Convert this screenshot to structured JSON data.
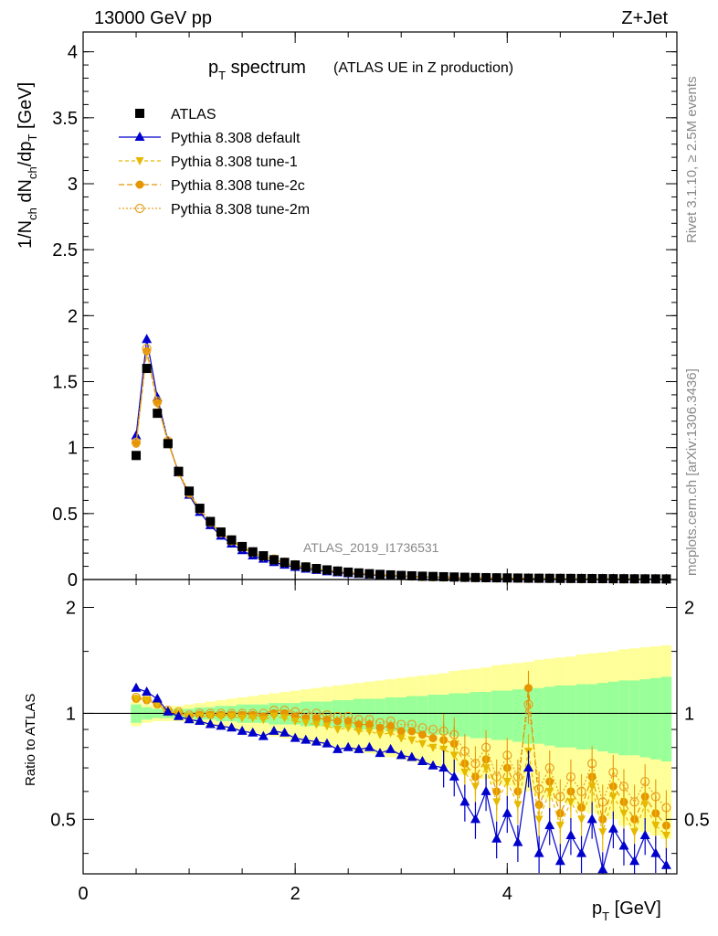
{
  "header": {
    "left": "13000 GeV pp",
    "right": "Z+Jet"
  },
  "title": {
    "main": "p",
    "main_sub": "T",
    "main_rest": " spectrum",
    "sub": "(ATLAS UE in Z production)"
  },
  "side_text": {
    "top": "Rivet 3.1.10, ≥ 2.5M events",
    "bottom": "mcplots.cern.ch [arXiv:1306.3436]"
  },
  "watermark": "ATLAS_2019_I1736531",
  "legend": [
    "ATLAS",
    "Pythia 8.308 default",
    "Pythia 8.308 tune-1",
    "Pythia 8.308 tune-2c",
    "Pythia 8.308 tune-2m"
  ],
  "colors": {
    "atlas": "#000000",
    "default": "#0000cc",
    "tune1": "#e6b800",
    "tune2c": "#e69500",
    "tune2m": "#e6a020",
    "band_inner": "#99ff99",
    "band_outer": "#ffff99"
  },
  "main_axis": {
    "ylabel": "1/N_ch dN_ch/dp_T [GeV]",
    "yticks": [
      "0",
      "0.5",
      "1",
      "1.5",
      "2",
      "2.5",
      "3",
      "3.5",
      "4"
    ]
  },
  "ratio_axis": {
    "ylabel": "Ratio to ATLAS",
    "yticks": [
      "0.5",
      "1",
      "2"
    ],
    "yticks_right": [
      "0.5",
      "1",
      "2"
    ]
  },
  "x_axis": {
    "label": "p_T [GeV]",
    "ticks": [
      "0",
      "2",
      "4"
    ]
  },
  "chart_data": [
    {
      "type": "scatter",
      "title": "p_T spectrum (ATLAS UE in Z production)",
      "xlabel": "p_T [GeV]",
      "ylabel": "1/N_ch dN_ch/dp_T [GeV]",
      "xlim": [
        0,
        5.6
      ],
      "ylim": [
        0,
        4.15
      ],
      "x": [
        0.5,
        0.6,
        0.7,
        0.8,
        0.9,
        1.0,
        1.1,
        1.2,
        1.3,
        1.4,
        1.5,
        1.6,
        1.7,
        1.8,
        1.9,
        2.0,
        2.1,
        2.2,
        2.3,
        2.4,
        2.5,
        2.6,
        2.7,
        2.8,
        2.9,
        3.0,
        3.1,
        3.2,
        3.3,
        3.4,
        3.5,
        3.6,
        3.7,
        3.8,
        3.9,
        4.0,
        4.1,
        4.2,
        4.3,
        4.4,
        4.5,
        4.6,
        4.7,
        4.8,
        4.9,
        5.0,
        5.1,
        5.2,
        5.3,
        5.4,
        5.5
      ],
      "series": [
        {
          "name": "ATLAS",
          "values": [
            0.94,
            1.6,
            1.26,
            1.03,
            0.82,
            0.67,
            0.54,
            0.44,
            0.36,
            0.3,
            0.25,
            0.21,
            0.18,
            0.15,
            0.13,
            0.11,
            0.095,
            0.083,
            0.073,
            0.064,
            0.056,
            0.05,
            0.044,
            0.039,
            0.035,
            0.031,
            0.028,
            0.025,
            0.023,
            0.021,
            0.019,
            0.017,
            0.015,
            0.014,
            0.013,
            0.012,
            0.011,
            0.01,
            0.0095,
            0.009,
            0.0085,
            0.008,
            0.0075,
            0.007,
            0.0065,
            0.006,
            0.0056,
            0.0052,
            0.0048,
            0.0045,
            0.0042
          ]
        },
        {
          "name": "Pythia 8.308 default",
          "values": [
            1.09,
            1.82,
            1.38,
            1.05,
            0.81,
            0.64,
            0.51,
            0.41,
            0.33,
            0.27,
            0.22,
            0.18,
            0.155,
            0.13,
            0.11,
            0.093,
            0.08,
            0.07,
            0.06,
            0.052,
            0.045,
            0.04,
            0.035,
            0.031,
            0.028,
            0.025,
            0.022,
            0.02,
            0.018,
            0.016,
            0.014,
            0.012,
            0.011,
            0.01,
            0.009,
            0.008,
            0.007,
            0.007,
            0.006,
            0.006,
            0.005,
            0.005,
            0.005,
            0.004,
            0.004,
            0.004,
            0.004,
            0.003,
            0.003,
            0.003,
            0.003
          ]
        },
        {
          "name": "Pythia 8.308 tune-1",
          "values": [
            1.03,
            1.72,
            1.33,
            1.04,
            0.81,
            0.65,
            0.53,
            0.43,
            0.35,
            0.29,
            0.24,
            0.2,
            0.17,
            0.145,
            0.125,
            0.105,
            0.09,
            0.078,
            0.068,
            0.059,
            0.051,
            0.045,
            0.039,
            0.034,
            0.031,
            0.027,
            0.024,
            0.021,
            0.019,
            0.017,
            0.015,
            0.013,
            0.012,
            0.011,
            0.01,
            0.009,
            0.008,
            0.008,
            0.007,
            0.007,
            0.006,
            0.006,
            0.005,
            0.005,
            0.005,
            0.004,
            0.004,
            0.004,
            0.004,
            0.003,
            0.003
          ]
        },
        {
          "name": "Pythia 8.308 tune-2c",
          "values": [
            1.03,
            1.73,
            1.34,
            1.04,
            0.81,
            0.65,
            0.53,
            0.43,
            0.35,
            0.29,
            0.245,
            0.205,
            0.175,
            0.15,
            0.128,
            0.108,
            0.093,
            0.08,
            0.07,
            0.061,
            0.053,
            0.046,
            0.04,
            0.035,
            0.031,
            0.027,
            0.024,
            0.022,
            0.02,
            0.018,
            0.016,
            0.014,
            0.013,
            0.012,
            0.011,
            0.01,
            0.009,
            0.008,
            0.008,
            0.007,
            0.007,
            0.006,
            0.006,
            0.005,
            0.005,
            0.005,
            0.004,
            0.004,
            0.004,
            0.004,
            0.003
          ]
        },
        {
          "name": "Pythia 8.308 tune-2m",
          "values": [
            1.04,
            1.75,
            1.35,
            1.05,
            0.82,
            0.66,
            0.54,
            0.44,
            0.36,
            0.3,
            0.25,
            0.21,
            0.18,
            0.155,
            0.132,
            0.112,
            0.097,
            0.084,
            0.073,
            0.064,
            0.055,
            0.048,
            0.042,
            0.037,
            0.033,
            0.029,
            0.026,
            0.023,
            0.021,
            0.019,
            0.017,
            0.015,
            0.014,
            0.013,
            0.012,
            0.011,
            0.01,
            0.009,
            0.009,
            0.008,
            0.007,
            0.007,
            0.006,
            0.006,
            0.006,
            0.005,
            0.005,
            0.005,
            0.004,
            0.004,
            0.004
          ]
        }
      ]
    },
    {
      "type": "line",
      "title": "",
      "xlabel": "p_T [GeV]",
      "ylabel": "Ratio to ATLAS",
      "xlim": [
        0,
        5.6
      ],
      "ylim": [
        0.35,
        2.4
      ],
      "log_y": true,
      "x": [
        0.5,
        0.6,
        0.7,
        0.8,
        0.9,
        1.0,
        1.1,
        1.2,
        1.3,
        1.4,
        1.5,
        1.6,
        1.7,
        1.8,
        1.9,
        2.0,
        2.1,
        2.2,
        2.3,
        2.4,
        2.5,
        2.6,
        2.7,
        2.8,
        2.9,
        3.0,
        3.1,
        3.2,
        3.3,
        3.4,
        3.5,
        3.6,
        3.7,
        3.8,
        3.9,
        4.0,
        4.1,
        4.2,
        4.3,
        4.4,
        4.5,
        4.6,
        4.7,
        4.8,
        4.9,
        5.0,
        5.1,
        5.2,
        5.3,
        5.4,
        5.5
      ],
      "band_inner": {
        "lo": [
          0.94,
          0.96,
          0.97,
          0.97,
          0.97,
          0.97,
          0.96,
          0.96,
          0.95,
          0.95,
          0.94,
          0.94,
          0.94,
          0.93,
          0.93,
          0.93,
          0.92,
          0.92,
          0.92,
          0.91,
          0.91,
          0.9,
          0.9,
          0.9,
          0.89,
          0.89,
          0.88,
          0.88,
          0.87,
          0.87,
          0.86,
          0.86,
          0.85,
          0.85,
          0.84,
          0.84,
          0.83,
          0.82,
          0.82,
          0.81,
          0.8,
          0.8,
          0.79,
          0.79,
          0.78,
          0.77,
          0.76,
          0.76,
          0.75,
          0.74,
          0.73
        ],
        "hi": [
          1.06,
          1.04,
          1.03,
          1.03,
          1.03,
          1.03,
          1.04,
          1.04,
          1.05,
          1.05,
          1.06,
          1.06,
          1.06,
          1.07,
          1.07,
          1.07,
          1.08,
          1.08,
          1.08,
          1.09,
          1.09,
          1.1,
          1.1,
          1.1,
          1.11,
          1.11,
          1.12,
          1.12,
          1.13,
          1.13,
          1.14,
          1.14,
          1.15,
          1.15,
          1.16,
          1.16,
          1.17,
          1.18,
          1.18,
          1.19,
          1.2,
          1.2,
          1.21,
          1.21,
          1.22,
          1.23,
          1.24,
          1.24,
          1.25,
          1.26,
          1.27
        ]
      },
      "band_outer": {
        "lo": [
          0.92,
          0.94,
          0.95,
          0.95,
          0.95,
          0.94,
          0.93,
          0.92,
          0.91,
          0.9,
          0.89,
          0.88,
          0.87,
          0.86,
          0.85,
          0.84,
          0.83,
          0.82,
          0.81,
          0.8,
          0.79,
          0.78,
          0.77,
          0.76,
          0.75,
          0.74,
          0.73,
          0.72,
          0.71,
          0.7,
          0.68,
          0.67,
          0.66,
          0.65,
          0.63,
          0.62,
          0.61,
          0.6,
          0.58,
          0.57,
          0.56,
          0.55,
          0.53,
          0.52,
          0.51,
          0.5,
          0.48,
          0.47,
          0.46,
          0.45,
          0.44
        ],
        "hi": [
          1.08,
          1.06,
          1.05,
          1.05,
          1.05,
          1.06,
          1.07,
          1.08,
          1.09,
          1.1,
          1.11,
          1.12,
          1.13,
          1.14,
          1.15,
          1.16,
          1.17,
          1.18,
          1.19,
          1.2,
          1.21,
          1.22,
          1.23,
          1.24,
          1.25,
          1.26,
          1.27,
          1.28,
          1.29,
          1.3,
          1.32,
          1.33,
          1.34,
          1.35,
          1.37,
          1.38,
          1.39,
          1.4,
          1.42,
          1.43,
          1.44,
          1.45,
          1.47,
          1.48,
          1.49,
          1.5,
          1.52,
          1.53,
          1.54,
          1.55,
          1.56
        ]
      },
      "series": [
        {
          "name": "Pythia 8.308 default",
          "values": [
            1.18,
            1.15,
            1.1,
            1.01,
            0.98,
            0.96,
            0.95,
            0.93,
            0.92,
            0.91,
            0.89,
            0.88,
            0.86,
            0.89,
            0.88,
            0.85,
            0.84,
            0.83,
            0.82,
            0.79,
            0.8,
            0.79,
            0.8,
            0.77,
            0.79,
            0.76,
            0.75,
            0.73,
            0.71,
            0.7,
            0.66,
            0.56,
            0.5,
            0.6,
            0.44,
            0.52,
            0.43,
            0.7,
            0.4,
            0.48,
            0.38,
            0.45,
            0.4,
            0.5,
            0.36,
            0.47,
            0.42,
            0.38,
            0.45,
            0.4,
            0.37
          ]
        },
        {
          "name": "Pythia 8.308 tune-1",
          "values": [
            1.1,
            1.09,
            1.06,
            1.01,
            1.0,
            0.98,
            0.98,
            0.98,
            0.98,
            0.98,
            0.97,
            0.97,
            0.96,
            0.98,
            0.97,
            0.95,
            0.94,
            0.93,
            0.92,
            0.9,
            0.91,
            0.89,
            0.89,
            0.87,
            0.88,
            0.85,
            0.84,
            0.82,
            0.8,
            0.79,
            0.76,
            0.68,
            0.62,
            0.7,
            0.56,
            0.64,
            0.55,
            0.78,
            0.5,
            0.6,
            0.48,
            0.56,
            0.5,
            0.62,
            0.46,
            0.58,
            0.52,
            0.46,
            0.55,
            0.48,
            0.45
          ]
        },
        {
          "name": "Pythia 8.308 tune-2c",
          "values": [
            1.1,
            1.09,
            1.06,
            1.01,
            1.0,
            0.98,
            0.99,
            0.99,
            0.99,
            0.99,
            0.99,
            0.99,
            0.98,
            1.0,
            1.0,
            0.98,
            0.97,
            0.97,
            0.96,
            0.95,
            0.95,
            0.93,
            0.93,
            0.91,
            0.92,
            0.89,
            0.89,
            0.87,
            0.85,
            0.84,
            0.82,
            0.72,
            0.66,
            0.74,
            0.6,
            0.7,
            0.6,
            1.18,
            0.55,
            0.64,
            0.52,
            0.6,
            0.54,
            0.66,
            0.5,
            0.62,
            0.56,
            0.5,
            0.58,
            0.52,
            0.48
          ]
        },
        {
          "name": "Pythia 8.308 tune-2m",
          "values": [
            1.11,
            1.1,
            1.07,
            1.02,
            1.01,
            0.99,
            1.0,
            1.0,
            1.0,
            1.0,
            1.0,
            1.0,
            1.0,
            1.02,
            1.02,
            1.01,
            1.0,
            1.0,
            0.99,
            0.98,
            0.98,
            0.96,
            0.96,
            0.94,
            0.95,
            0.93,
            0.93,
            0.91,
            0.9,
            0.89,
            0.87,
            0.78,
            0.72,
            0.8,
            0.66,
            0.76,
            0.66,
            1.06,
            0.61,
            0.7,
            0.58,
            0.66,
            0.6,
            0.72,
            0.56,
            0.68,
            0.62,
            0.56,
            0.64,
            0.58,
            0.54
          ]
        }
      ]
    }
  ]
}
